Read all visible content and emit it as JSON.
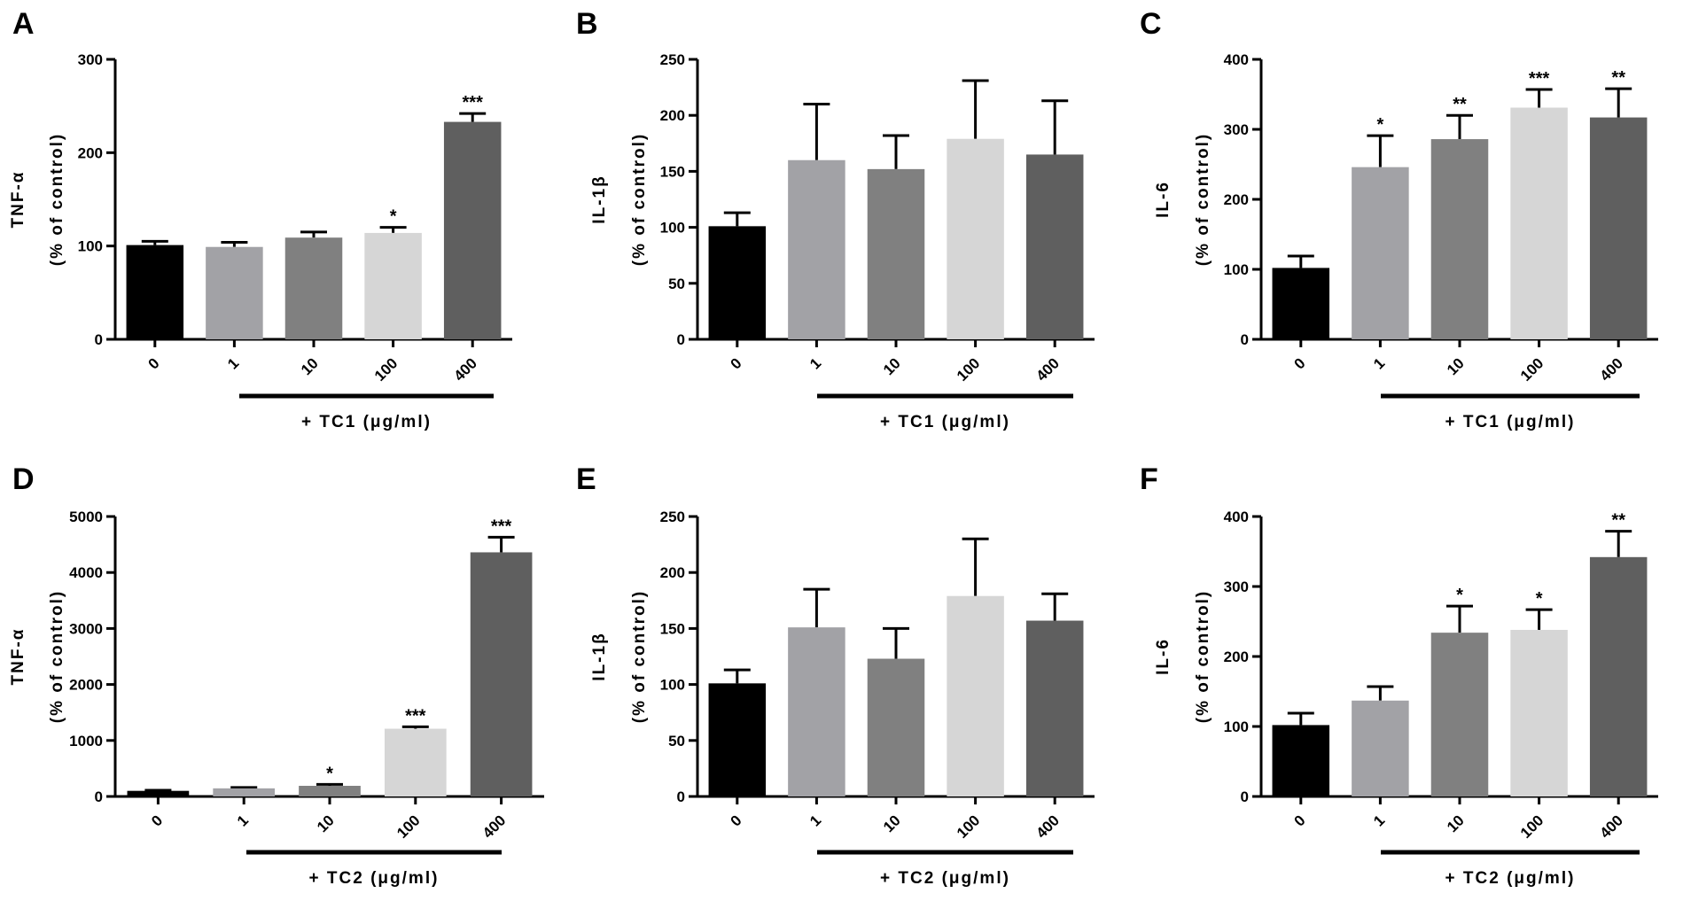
{
  "colors": {
    "bar_0": "#000000",
    "bar_1": "#a2a2a6",
    "bar_10": "#808080",
    "bar_100": "#d6d6d6",
    "bar_400": "#5f5f5f",
    "axis": "#000000"
  },
  "chart_data": [
    {
      "panel": "A",
      "type": "bar",
      "ylabel_line1": "TNF-α",
      "ylabel_line2": "(% of control)",
      "treatment_label": "+ TC1 (μg/ml)",
      "categories": [
        "0",
        "1",
        "10",
        "100",
        "400"
      ],
      "values": [
        101,
        99,
        109,
        114,
        233
      ],
      "errors": [
        4,
        5,
        6,
        6,
        9
      ],
      "significance": [
        "",
        "",
        "",
        "*",
        "***"
      ],
      "ylim": [
        0,
        300
      ],
      "yticks": [
        0,
        100,
        200,
        300
      ]
    },
    {
      "panel": "B",
      "type": "bar",
      "ylabel_line1": "IL-1β",
      "ylabel_line2": "(% of control)",
      "treatment_label": "+ TC1 (μg/ml)",
      "categories": [
        "0",
        "1",
        "10",
        "100",
        "400"
      ],
      "values": [
        101,
        160,
        152,
        179,
        165
      ],
      "errors": [
        12,
        50,
        30,
        52,
        48
      ],
      "significance": [
        "",
        "",
        "",
        "",
        ""
      ],
      "ylim": [
        0,
        250
      ],
      "yticks": [
        0,
        50,
        100,
        150,
        200,
        250
      ]
    },
    {
      "panel": "C",
      "type": "bar",
      "ylabel_line1": "IL-6",
      "ylabel_line2": "(% of control)",
      "treatment_label": "+ TC1 (μg/ml)",
      "categories": [
        "0",
        "1",
        "10",
        "100",
        "400"
      ],
      "values": [
        102,
        246,
        286,
        331,
        317
      ],
      "errors": [
        17,
        45,
        34,
        26,
        41
      ],
      "significance": [
        "",
        "*",
        "**",
        "***",
        "**"
      ],
      "ylim": [
        0,
        400
      ],
      "yticks": [
        0,
        100,
        200,
        300,
        400
      ]
    },
    {
      "panel": "D",
      "type": "bar",
      "ylabel_line1": "TNF-α",
      "ylabel_line2": "(% of control)",
      "treatment_label": "+ TC2 (μg/ml)",
      "categories": [
        "0",
        "1",
        "10",
        "100",
        "400"
      ],
      "values": [
        100,
        145,
        190,
        1210,
        4360
      ],
      "errors": [
        10,
        15,
        25,
        35,
        270
      ],
      "significance": [
        "",
        "",
        "*",
        "***",
        "***"
      ],
      "ylim": [
        0,
        5000
      ],
      "yticks": [
        0,
        1000,
        2000,
        3000,
        4000,
        5000
      ]
    },
    {
      "panel": "E",
      "type": "bar",
      "ylabel_line1": "IL-1β",
      "ylabel_line2": "(% of control)",
      "treatment_label": "+ TC2 (μg/ml)",
      "categories": [
        "0",
        "1",
        "10",
        "100",
        "400"
      ],
      "values": [
        101,
        151,
        123,
        179,
        157
      ],
      "errors": [
        12,
        34,
        27,
        51,
        24
      ],
      "significance": [
        "",
        "",
        "",
        "",
        ""
      ],
      "ylim": [
        0,
        250
      ],
      "yticks": [
        0,
        50,
        100,
        150,
        200,
        250
      ]
    },
    {
      "panel": "F",
      "type": "bar",
      "ylabel_line1": "IL-6",
      "ylabel_line2": "(% of control)",
      "treatment_label": "+ TC2 (μg/ml)",
      "categories": [
        "0",
        "1",
        "10",
        "100",
        "400"
      ],
      "values": [
        102,
        137,
        234,
        238,
        342
      ],
      "errors": [
        17,
        20,
        38,
        29,
        37
      ],
      "significance": [
        "",
        "",
        "*",
        "*",
        "**"
      ],
      "ylim": [
        0,
        400
      ],
      "yticks": [
        0,
        100,
        200,
        300,
        400
      ]
    }
  ]
}
